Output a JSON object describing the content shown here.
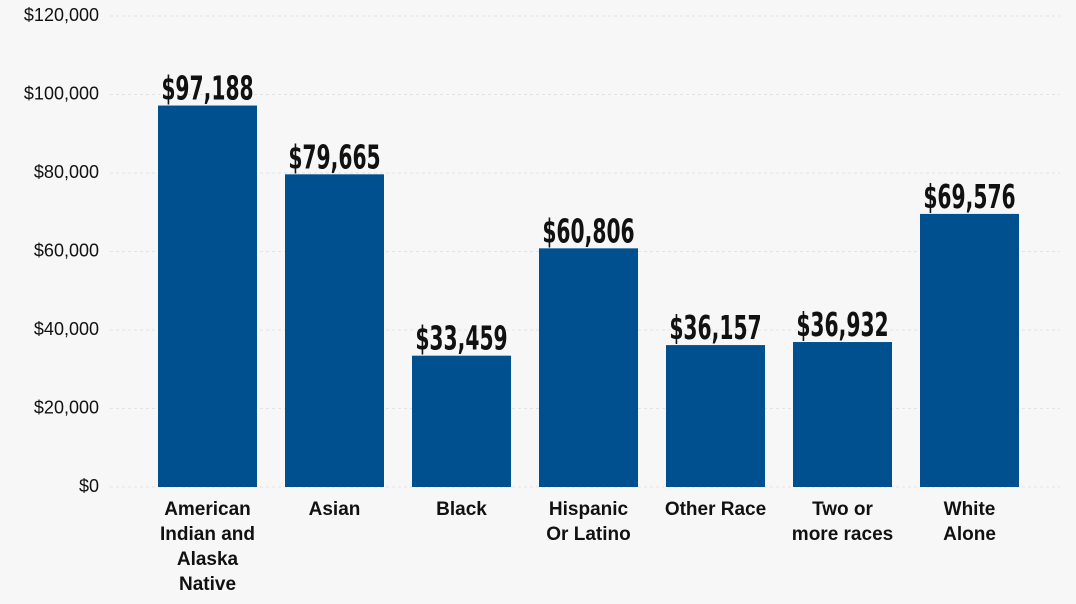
{
  "chart_data": {
    "type": "bar",
    "categories": [
      "American Indian and Alaska Native",
      "Asian",
      "Black",
      "Hispanic Or Latino",
      "Other Race",
      "Two or more races",
      "White Alone"
    ],
    "category_lines": [
      [
        "American",
        "Indian and",
        "Alaska",
        "Native"
      ],
      [
        "Asian"
      ],
      [
        "Black"
      ],
      [
        "Hispanic",
        "Or Latino"
      ],
      [
        "Other Race"
      ],
      [
        "Two or",
        "more races"
      ],
      [
        "White",
        "Alone"
      ]
    ],
    "values": [
      97188,
      79665,
      33459,
      60806,
      36157,
      36932,
      69576
    ],
    "data_labels": [
      "$97,188",
      "$79,665",
      "$33,459",
      "$60,806",
      "$36,157",
      "$36,932",
      "$69,576"
    ],
    "ylim": [
      0,
      120000
    ],
    "yticks": [
      0,
      20000,
      40000,
      60000,
      80000,
      100000,
      120000
    ],
    "ytick_labels": [
      "$0",
      "$20,000",
      "$40,000",
      "$60,000",
      "$80,000",
      "$100,000",
      "$120,000"
    ],
    "title": "",
    "xlabel": "",
    "ylabel": "",
    "grid": true,
    "legend": "none",
    "bar_color": "#00508f",
    "background_color": "#f7f7f7"
  }
}
